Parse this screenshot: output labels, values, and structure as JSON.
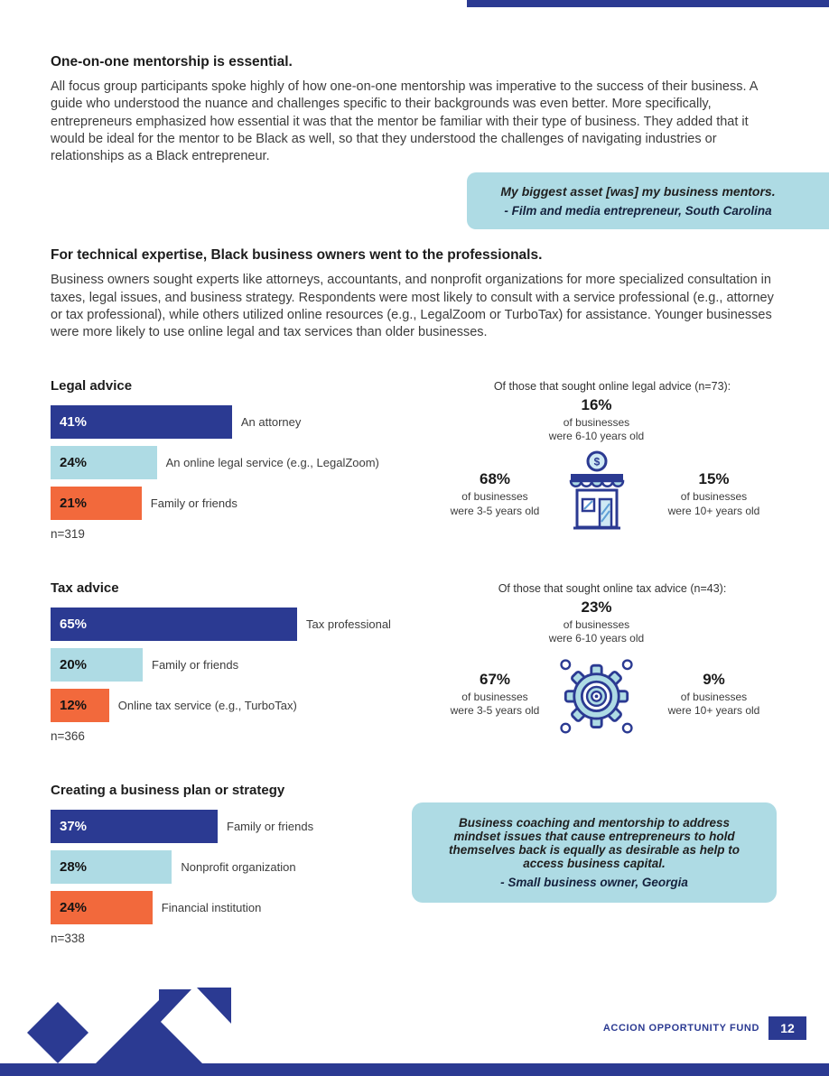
{
  "colors": {
    "navy": "#2b3a92",
    "light_blue": "#aedbe4",
    "orange": "#f2693c"
  },
  "sections": [
    {
      "heading": "One-on-one mentorship is essential.",
      "body": "All focus group participants spoke highly of how one-on-one mentorship was imperative to the success of their business. A guide who understood the nuance and challenges specific to their backgrounds was even better. More specifically, entrepreneurs emphasized how essential it was that the mentor be familiar with their type of business. They added that it would be ideal for the mentor to be Black as well, so that they understood the challenges of navigating industries or relationships as a Black entrepreneur."
    },
    {
      "heading": "For technical expertise, Black business owners went to the professionals.",
      "body": "Business owners sought experts like attorneys, accountants, and nonprofit organizations for more specialized consultation in taxes, legal issues, and business strategy. Respondents were most likely to consult with a service professional (e.g., attorney or tax professional), while others utilized online resources (e.g., LegalZoom or TurboTax) for assistance. Younger businesses were more likely to use online legal and tax services than older businesses."
    }
  ],
  "quotes": [
    {
      "text": "My biggest asset [was] my business mentors.",
      "attribution": "- Film and media entrepreneur, South Carolina"
    },
    {
      "text": "Business coaching and mentorship to address mindset issues that cause entrepreneurs to hold themselves back is equally as desirable as help to access business capital.",
      "attribution": "- Small business owner, Georgia"
    }
  ],
  "chart_data": [
    {
      "type": "bar",
      "title": "Legal advice",
      "sample": "n=319",
      "xlabel": "",
      "ylabel": "",
      "categories": [
        "An attorney",
        "An online legal service (e.g., LegalZoom)",
        "Family or friends"
      ],
      "values": [
        41,
        24,
        21
      ],
      "bars": [
        {
          "pct": 41,
          "pct_text": "41%",
          "label": "An attorney",
          "color": "navy"
        },
        {
          "pct": 24,
          "pct_text": "24%",
          "label": "An online legal service (e.g., LegalZoom)",
          "color": "light_blue"
        },
        {
          "pct": 21,
          "pct_text": "21%",
          "label": "Family or friends",
          "color": "orange"
        }
      ],
      "aside": {
        "title": "Of those that sought online legal advice (n=73):",
        "icon": "storefront-icon",
        "stats": {
          "top": {
            "pct": "16%",
            "line1": "of businesses",
            "line2": "were 6-10 years old"
          },
          "left": {
            "pct": "68%",
            "line1": "of businesses",
            "line2": "were 3-5 years old"
          },
          "right": {
            "pct": "15%",
            "line1": "of businesses",
            "line2": "were 10+ years old"
          }
        }
      }
    },
    {
      "type": "bar",
      "title": "Tax advice",
      "sample": "n=366",
      "xlabel": "",
      "ylabel": "",
      "categories": [
        "Tax professional",
        "Family or friends",
        "Online tax service (e.g., TurboTax)"
      ],
      "values": [
        65,
        20,
        12
      ],
      "bars": [
        {
          "pct": 65,
          "pct_text": "65%",
          "label": "Tax professional",
          "color": "navy"
        },
        {
          "pct": 20,
          "pct_text": "20%",
          "label": "Family or friends",
          "color": "light_blue"
        },
        {
          "pct": 12,
          "pct_text": "12%",
          "label": "Online tax service (e.g., TurboTax)",
          "color": "orange"
        }
      ],
      "aside": {
        "title": "Of those that sought online tax advice (n=43):",
        "icon": "gear-icon",
        "stats": {
          "top": {
            "pct": "23%",
            "line1": "of businesses",
            "line2": "were 6-10 years old"
          },
          "left": {
            "pct": "67%",
            "line1": "of businesses",
            "line2": "were 3-5 years old"
          },
          "right": {
            "pct": "9%",
            "line1": "of businesses",
            "line2": "were 10+ years old"
          }
        }
      }
    },
    {
      "type": "bar",
      "title": "Creating a business plan or strategy",
      "sample": "n=338",
      "xlabel": "",
      "ylabel": "",
      "categories": [
        "Family or friends",
        "Nonprofit organization",
        "Financial institution"
      ],
      "values": [
        37,
        28,
        24
      ],
      "bars": [
        {
          "pct": 37,
          "pct_text": "37%",
          "label": "Family or friends",
          "color": "navy"
        },
        {
          "pct": 28,
          "pct_text": "28%",
          "label": "Nonprofit organization",
          "color": "light_blue"
        },
        {
          "pct": 24,
          "pct_text": "24%",
          "label": "Financial institution",
          "color": "orange"
        }
      ]
    }
  ],
  "footer": {
    "brand": "ACCION OPPORTUNITY FUND",
    "page_number": "12"
  }
}
